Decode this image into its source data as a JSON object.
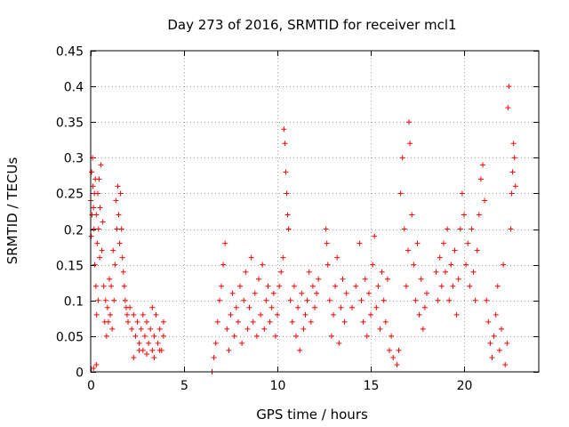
{
  "chart_data": {
    "type": "scatter",
    "title": "Day 273 of 2016, SRMTID for receiver mcl1",
    "xlabel": "GPS time / hours",
    "ylabel": "SRMTID / TECUs",
    "xlim": [
      0,
      24
    ],
    "ylim": [
      0,
      0.45
    ],
    "xticks": [
      0,
      5,
      10,
      15,
      20
    ],
    "xtick_labels": [
      "0",
      "5",
      "10",
      "15",
      "20"
    ],
    "yticks": [
      0,
      0.05,
      0.1,
      0.15,
      0.2,
      0.25,
      0.3,
      0.35,
      0.4,
      0.45
    ],
    "ytick_labels": [
      "0",
      "0.05",
      "0.1",
      "0.15",
      "0.2",
      "0.25",
      "0.3",
      "0.35",
      "0.4",
      "0.45"
    ],
    "grid": true,
    "marker": "plus",
    "color": "#ff0000",
    "series": [
      {
        "name": "SRMTID",
        "points": [
          [
            0.0,
            0.24
          ],
          [
            0.03,
            0.19
          ],
          [
            0.05,
            0.28
          ],
          [
            0.07,
            0.22
          ],
          [
            0.1,
            0.3
          ],
          [
            0.12,
            0.26
          ],
          [
            0.15,
            0.23
          ],
          [
            0.18,
            0.2
          ],
          [
            0.2,
            0.25
          ],
          [
            0.22,
            0.15
          ],
          [
            0.25,
            0.27
          ],
          [
            0.28,
            0.12
          ],
          [
            0.3,
            0.22
          ],
          [
            0.32,
            0.08
          ],
          [
            0.35,
            0.18
          ],
          [
            0.38,
            0.25
          ],
          [
            0.4,
            0.1
          ],
          [
            0.42,
            0.2
          ],
          [
            0.45,
            0.27
          ],
          [
            0.48,
            0.16
          ],
          [
            0.5,
            0.23
          ],
          [
            0.55,
            0.29
          ],
          [
            0.6,
            0.17
          ],
          [
            0.65,
            0.21
          ],
          [
            0.7,
            0.12
          ],
          [
            0.75,
            0.07
          ],
          [
            0.8,
            0.1
          ],
          [
            0.85,
            0.05
          ],
          [
            0.9,
            0.09
          ],
          [
            0.95,
            0.07
          ],
          [
            1.0,
            0.13
          ],
          [
            1.05,
            0.08
          ],
          [
            1.1,
            0.12
          ],
          [
            1.15,
            0.06
          ],
          [
            1.2,
            0.17
          ],
          [
            1.25,
            0.1
          ],
          [
            1.3,
            0.15
          ],
          [
            1.35,
            0.24
          ],
          [
            1.4,
            0.2
          ],
          [
            1.45,
            0.26
          ],
          [
            1.5,
            0.22
          ],
          [
            1.55,
            0.18
          ],
          [
            1.6,
            0.25
          ],
          [
            1.65,
            0.2
          ],
          [
            1.7,
            0.16
          ],
          [
            1.75,
            0.14
          ],
          [
            1.8,
            0.12
          ],
          [
            1.85,
            0.1
          ],
          [
            1.9,
            0.09
          ],
          [
            1.95,
            0.08
          ],
          [
            0.15,
            0.005
          ],
          [
            0.3,
            0.01
          ],
          [
            2.0,
            0.07
          ],
          [
            2.1,
            0.09
          ],
          [
            2.2,
            0.06
          ],
          [
            2.3,
            0.08
          ],
          [
            2.4,
            0.05
          ],
          [
            2.5,
            0.07
          ],
          [
            2.6,
            0.04
          ],
          [
            2.7,
            0.06
          ],
          [
            2.8,
            0.03
          ],
          [
            2.9,
            0.05
          ],
          [
            3.0,
            0.07
          ],
          [
            3.1,
            0.04
          ],
          [
            3.2,
            0.06
          ],
          [
            3.3,
            0.03
          ],
          [
            3.4,
            0.05
          ],
          [
            3.5,
            0.08
          ],
          [
            3.6,
            0.04
          ],
          [
            3.7,
            0.06
          ],
          [
            3.8,
            0.03
          ],
          [
            3.9,
            0.05
          ],
          [
            2.3,
            0.02
          ],
          [
            2.6,
            0.03
          ],
          [
            3.0,
            0.025
          ],
          [
            3.4,
            0.02
          ],
          [
            3.7,
            0.03
          ],
          [
            2.8,
            0.08
          ],
          [
            3.3,
            0.09
          ],
          [
            3.9,
            0.07
          ],
          [
            6.5,
            0.0
          ],
          [
            6.6,
            0.02
          ],
          [
            6.7,
            0.04
          ],
          [
            6.8,
            0.07
          ],
          [
            6.9,
            0.1
          ],
          [
            7.0,
            0.12
          ],
          [
            7.1,
            0.15
          ],
          [
            7.2,
            0.18
          ],
          [
            7.3,
            0.06
          ],
          [
            7.4,
            0.03
          ],
          [
            7.5,
            0.08
          ],
          [
            7.6,
            0.11
          ],
          [
            7.7,
            0.05
          ],
          [
            7.8,
            0.09
          ],
          [
            7.9,
            0.07
          ],
          [
            8.0,
            0.12
          ],
          [
            8.1,
            0.04
          ],
          [
            8.2,
            0.1
          ],
          [
            8.3,
            0.14
          ],
          [
            8.4,
            0.06
          ],
          [
            8.5,
            0.09
          ],
          [
            8.6,
            0.16
          ],
          [
            8.7,
            0.07
          ],
          [
            8.8,
            0.11
          ],
          [
            8.9,
            0.05
          ],
          [
            9.0,
            0.13
          ],
          [
            9.1,
            0.08
          ],
          [
            9.2,
            0.15
          ],
          [
            9.3,
            0.06
          ],
          [
            9.4,
            0.1
          ],
          [
            9.5,
            0.12
          ],
          [
            9.6,
            0.07
          ],
          [
            9.7,
            0.09
          ],
          [
            9.8,
            0.11
          ],
          [
            9.9,
            0.05
          ],
          [
            10.0,
            0.08
          ],
          [
            10.1,
            0.12
          ],
          [
            10.2,
            0.14
          ],
          [
            10.3,
            0.16
          ],
          [
            10.35,
            0.34
          ],
          [
            10.4,
            0.32
          ],
          [
            10.45,
            0.28
          ],
          [
            10.5,
            0.25
          ],
          [
            10.55,
            0.22
          ],
          [
            10.6,
            0.2
          ],
          [
            10.7,
            0.1
          ],
          [
            10.8,
            0.07
          ],
          [
            10.9,
            0.12
          ],
          [
            11.0,
            0.05
          ],
          [
            11.1,
            0.09
          ],
          [
            11.2,
            0.03
          ],
          [
            11.3,
            0.11
          ],
          [
            11.4,
            0.06
          ],
          [
            11.5,
            0.08
          ],
          [
            11.6,
            0.1
          ],
          [
            11.7,
            0.14
          ],
          [
            11.8,
            0.07
          ],
          [
            11.9,
            0.12
          ],
          [
            12.0,
            0.09
          ],
          [
            12.1,
            0.11
          ],
          [
            12.2,
            0.13
          ],
          [
            12.6,
            0.2
          ],
          [
            12.65,
            0.18
          ],
          [
            12.7,
            0.15
          ],
          [
            12.8,
            0.1
          ],
          [
            12.9,
            0.05
          ],
          [
            13.0,
            0.08
          ],
          [
            13.1,
            0.12
          ],
          [
            13.2,
            0.16
          ],
          [
            13.3,
            0.04
          ],
          [
            13.4,
            0.09
          ],
          [
            13.5,
            0.13
          ],
          [
            13.6,
            0.07
          ],
          [
            13.7,
            0.11
          ],
          [
            14.0,
            0.09
          ],
          [
            14.2,
            0.12
          ],
          [
            14.4,
            0.18
          ],
          [
            14.5,
            0.1
          ],
          [
            14.6,
            0.07
          ],
          [
            14.7,
            0.13
          ],
          [
            14.8,
            0.05
          ],
          [
            14.9,
            0.11
          ],
          [
            15.0,
            0.08
          ],
          [
            15.1,
            0.15
          ],
          [
            15.2,
            0.19
          ],
          [
            15.3,
            0.09
          ],
          [
            15.4,
            0.12
          ],
          [
            15.5,
            0.06
          ],
          [
            15.6,
            0.14
          ],
          [
            15.7,
            0.1
          ],
          [
            15.8,
            0.07
          ],
          [
            15.9,
            0.13
          ],
          [
            16.0,
            0.03
          ],
          [
            16.1,
            0.05
          ],
          [
            16.2,
            0.02
          ],
          [
            16.4,
            0.01
          ],
          [
            16.5,
            0.03
          ],
          [
            16.6,
            0.25
          ],
          [
            16.7,
            0.3
          ],
          [
            16.8,
            0.2
          ],
          [
            16.9,
            0.12
          ],
          [
            17.0,
            0.17
          ],
          [
            17.05,
            0.35
          ],
          [
            17.1,
            0.32
          ],
          [
            17.2,
            0.22
          ],
          [
            17.3,
            0.15
          ],
          [
            17.4,
            0.1
          ],
          [
            17.5,
            0.18
          ],
          [
            17.6,
            0.08
          ],
          [
            17.7,
            0.13
          ],
          [
            17.8,
            0.06
          ],
          [
            17.9,
            0.09
          ],
          [
            18.0,
            0.11
          ],
          [
            18.5,
            0.14
          ],
          [
            18.6,
            0.1
          ],
          [
            18.7,
            0.16
          ],
          [
            18.8,
            0.12
          ],
          [
            18.9,
            0.18
          ],
          [
            19.0,
            0.14
          ],
          [
            19.1,
            0.2
          ],
          [
            19.2,
            0.1
          ],
          [
            19.3,
            0.15
          ],
          [
            19.4,
            0.12
          ],
          [
            19.5,
            0.17
          ],
          [
            19.6,
            0.08
          ],
          [
            19.7,
            0.13
          ],
          [
            19.8,
            0.2
          ],
          [
            19.9,
            0.25
          ],
          [
            20.0,
            0.22
          ],
          [
            20.1,
            0.15
          ],
          [
            20.2,
            0.18
          ],
          [
            20.3,
            0.12
          ],
          [
            20.4,
            0.2
          ],
          [
            20.5,
            0.14
          ],
          [
            20.6,
            0.1
          ],
          [
            20.7,
            0.17
          ],
          [
            20.8,
            0.22
          ],
          [
            20.9,
            0.27
          ],
          [
            21.0,
            0.29
          ],
          [
            21.1,
            0.24
          ],
          [
            21.2,
            0.1
          ],
          [
            21.3,
            0.07
          ],
          [
            21.4,
            0.04
          ],
          [
            21.5,
            0.02
          ],
          [
            21.6,
            0.05
          ],
          [
            21.7,
            0.08
          ],
          [
            21.8,
            0.12
          ],
          [
            21.9,
            0.03
          ],
          [
            22.0,
            0.06
          ],
          [
            22.1,
            0.15
          ],
          [
            22.2,
            0.01
          ],
          [
            22.3,
            0.04
          ],
          [
            22.35,
            0.37
          ],
          [
            22.4,
            0.4
          ],
          [
            22.5,
            0.2
          ],
          [
            22.55,
            0.25
          ],
          [
            22.6,
            0.28
          ],
          [
            22.65,
            0.32
          ],
          [
            22.7,
            0.3
          ],
          [
            22.75,
            0.26
          ]
        ]
      }
    ]
  }
}
